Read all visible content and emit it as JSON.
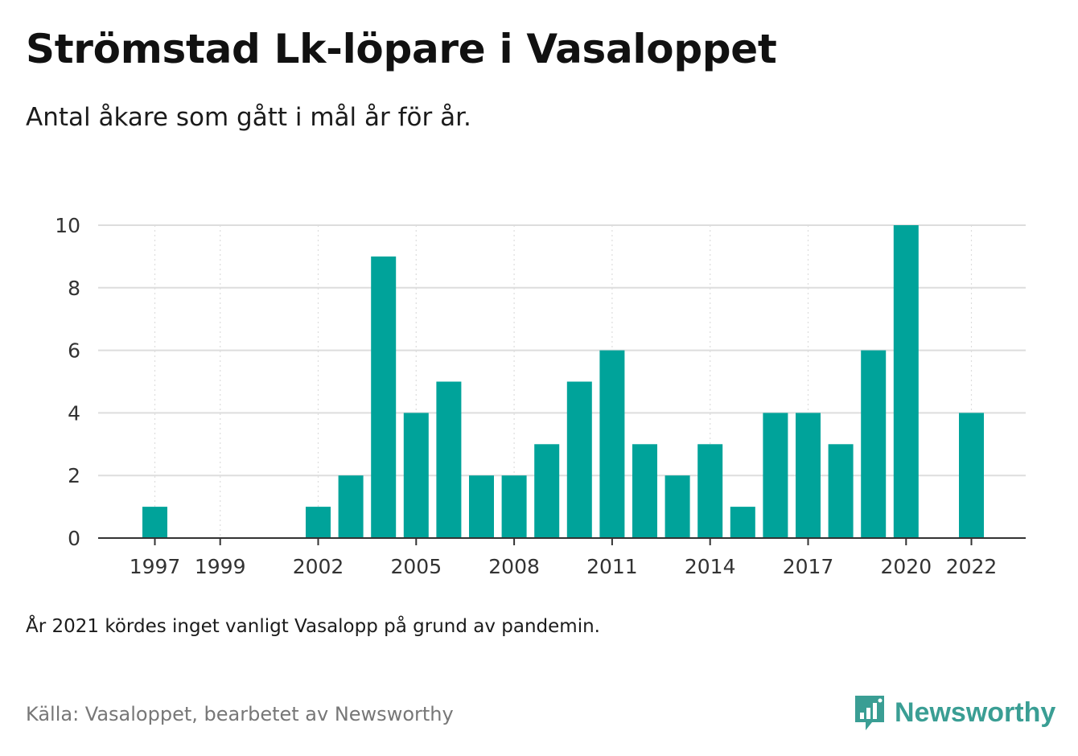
{
  "header": {
    "title": "Strömstad Lk-löpare i Vasaloppet",
    "subtitle": "Antal åkare som gått i mål år för år."
  },
  "footer": {
    "note": "År 2021 kördes inget vanligt Vasalopp på grund av pandemin.",
    "source": "Källa: Vasaloppet, bearbetet av Newsworthy",
    "logo_text": "Newsworthy",
    "logo_icon": "newsworthy-bar-chart-icon"
  },
  "colors": {
    "bar": "#00a39a",
    "grid": "#dddddd",
    "axis": "#333333",
    "logo": "#3a9e94"
  },
  "chart_data": {
    "type": "bar",
    "title": "Strömstad Lk-löpare i Vasaloppet",
    "subtitle": "Antal åkare som gått i mål år för år.",
    "xlabel": "",
    "ylabel": "",
    "ylim": [
      0,
      10
    ],
    "yticks": [
      0,
      2,
      4,
      6,
      8,
      10
    ],
    "xticks": [
      "1997",
      "1999",
      "2002",
      "2005",
      "2008",
      "2011",
      "2014",
      "2017",
      "2020",
      "2022"
    ],
    "grid": true,
    "legend": "none",
    "categories": [
      "1996",
      "1997",
      "1998",
      "1999",
      "2000",
      "2001",
      "2002",
      "2003",
      "2004",
      "2005",
      "2006",
      "2007",
      "2008",
      "2009",
      "2010",
      "2011",
      "2012",
      "2013",
      "2014",
      "2015",
      "2016",
      "2017",
      "2018",
      "2019",
      "2020",
      "2021",
      "2022",
      "2023"
    ],
    "values": [
      null,
      1,
      0,
      0,
      0,
      0,
      1,
      2,
      9,
      4,
      5,
      2,
      2,
      3,
      5,
      6,
      3,
      2,
      3,
      1,
      4,
      4,
      3,
      6,
      10,
      null,
      4,
      null
    ]
  }
}
